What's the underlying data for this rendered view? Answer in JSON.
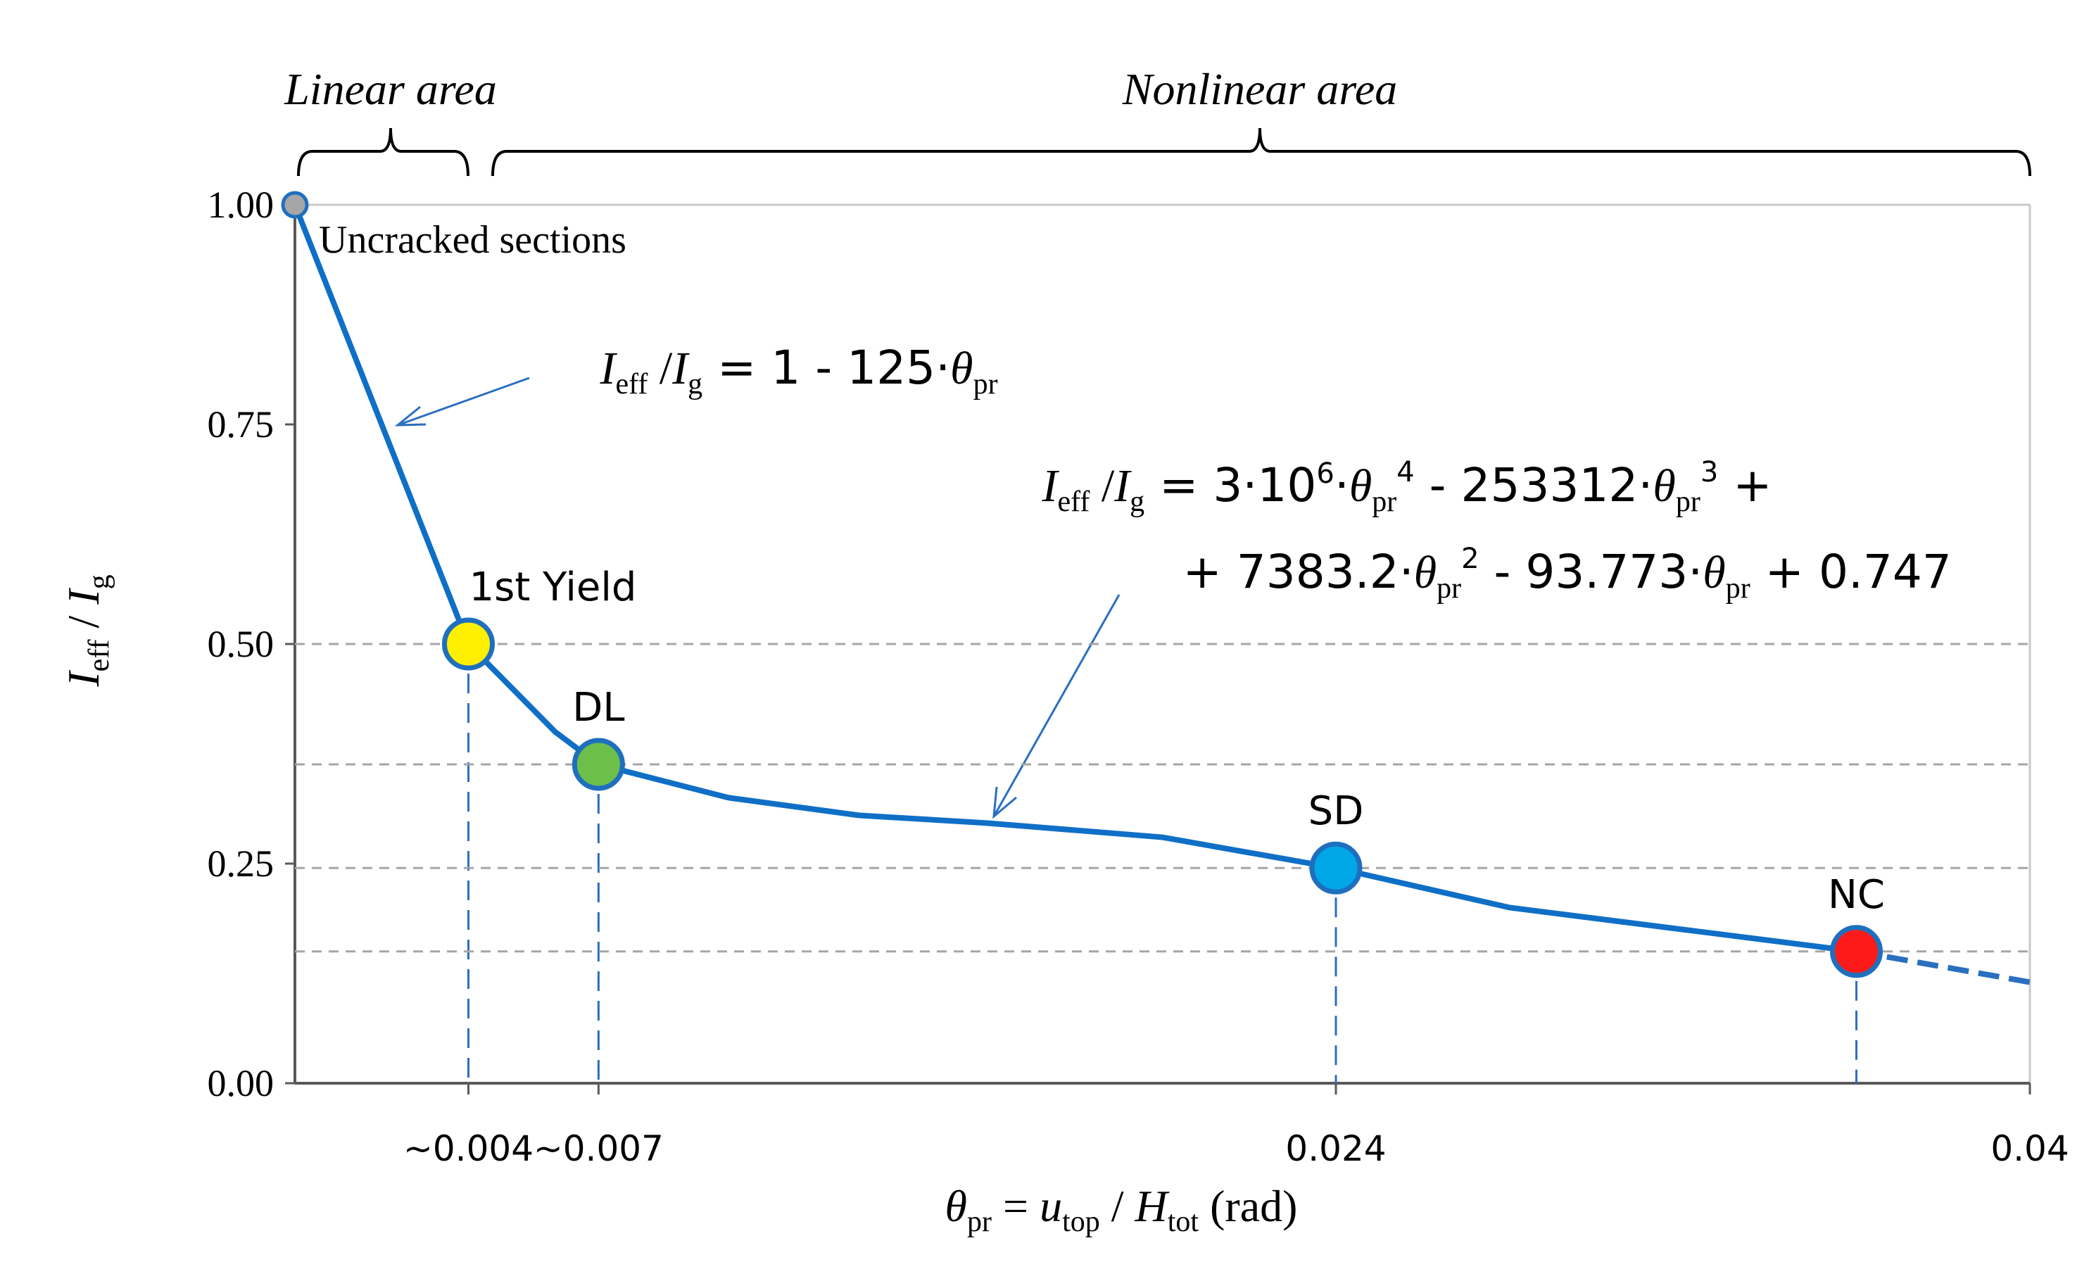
{
  "chart_data": {
    "type": "line",
    "annotations": {
      "linear_area": "Linear area",
      "nonlinear_area": "Nonlinear area",
      "formula1": [
        "I",
        "eff",
        " /",
        "I",
        "g",
        " = 1 - 125·",
        "θ",
        "pr"
      ],
      "formula2_line1": [
        "I",
        "eff",
        " /",
        "I",
        "g",
        " = 3·10",
        "6",
        "·",
        "θ",
        "pr",
        "4",
        " - 253312·",
        "θ",
        "pr",
        "3",
        " +"
      ],
      "formula2_line2": [
        "+ 7383.2·",
        "θ",
        "pr",
        "2",
        " - 93.773·",
        "θ",
        "pr",
        " + 0.747"
      ]
    },
    "y_label": [
      "I",
      "eff",
      " / ",
      "I",
      "g"
    ],
    "x_label": [
      "θ",
      "pr",
      " = ",
      "u",
      "top",
      " / ",
      "H",
      "tot",
      " (rad)"
    ],
    "xlim": [
      0,
      0.04
    ],
    "ylim": [
      0,
      1
    ],
    "xticks": [
      {
        "value": 0.004,
        "label": "~0.004"
      },
      {
        "value": 0.007,
        "label": "~0.007"
      },
      0.024,
      0.04
    ],
    "yticks": [
      {
        "value": 0,
        "label": "0.00"
      },
      {
        "value": 0.25,
        "label": "0.25"
      },
      {
        "value": 0.5,
        "label": "0.50"
      },
      {
        "value": 0.75,
        "label": "0.75"
      },
      {
        "value": 1,
        "label": "1.00"
      }
    ],
    "x": [
      0,
      0.004,
      0.005,
      0.006,
      0.007,
      0.01,
      0.013,
      0.016,
      0.02,
      0.024,
      0.028,
      0.032,
      0.036
    ],
    "series": [
      {
        "color": "#0f6fc6",
        "values": [
          1,
          0.5,
          0.45,
          0.4,
          0.363,
          0.325,
          0.305,
          0.296,
          0.28,
          0.245,
          0.2,
          0.175,
          0.15
        ]
      }
    ],
    "extension": {
      "color": "#2a6fc0",
      "x": [
        0.036,
        0.04
      ],
      "values": [
        0.15,
        0.115
      ]
    },
    "points": {
      "labels": [
        "Uncracked sections",
        "1st Yield",
        "DL",
        "SD",
        "NC"
      ],
      "x": [
        0,
        0.004,
        0.007,
        0.024,
        0.036
      ],
      "values": [
        1,
        0.5,
        0.363,
        0.245,
        0.15
      ],
      "colors": [
        "#a6a6a6",
        "#ffef00",
        "#6cc04a",
        "#00a8e8",
        "#ff1a1a"
      ]
    }
  }
}
